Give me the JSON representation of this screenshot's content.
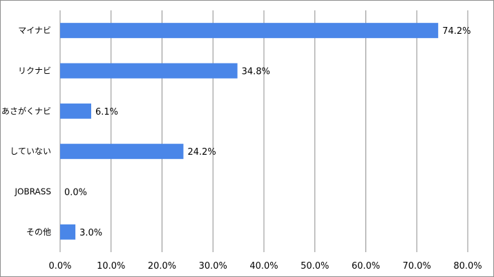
{
  "chart_data": {
    "type": "bar",
    "orientation": "horizontal",
    "categories": [
      "マイナビ",
      "リクナビ",
      "あさがくナビ",
      "していない",
      "JOBRASS",
      "その他"
    ],
    "values": [
      74.2,
      34.8,
      6.1,
      24.2,
      0.0,
      3.0
    ],
    "data_labels": [
      "74.2%",
      "34.8%",
      "6.1%",
      "24.2%",
      "0.0%",
      "3.0%"
    ],
    "xlim": [
      0,
      80
    ],
    "x_ticks": [
      0,
      10,
      20,
      30,
      40,
      50,
      60,
      70,
      80
    ],
    "x_tick_labels": [
      "0.0%",
      "10.0%",
      "20.0%",
      "30.0%",
      "40.0%",
      "50.0%",
      "60.0%",
      "70.0%",
      "80.0%"
    ],
    "grid": "vertical",
    "legend": "none",
    "bar_color": "#4a86e8",
    "gridline_color": "#8c8c8c"
  }
}
